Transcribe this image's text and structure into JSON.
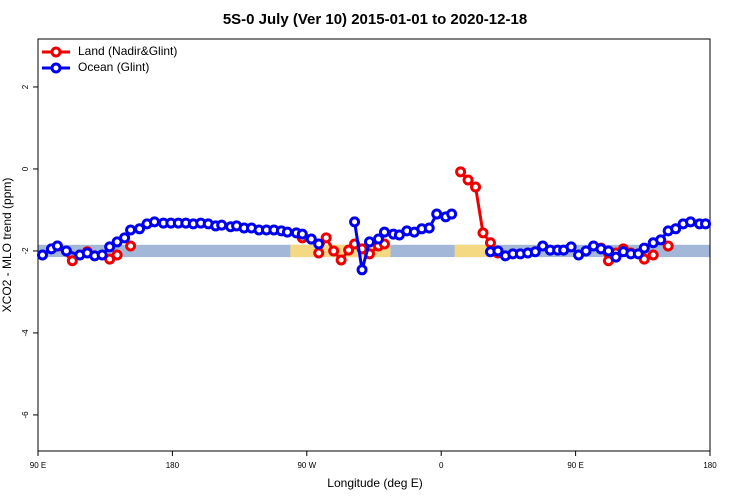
{
  "chart_data": {
    "type": "line",
    "title": "5S-0 July (Ver 10)   2015-01-01 to 2020-12-18",
    "x_label": "Longitude (deg E)",
    "y_label": "XCO2 - MLO trend (ppm)",
    "xlim": [
      90,
      540
    ],
    "ylim": [
      -6.88,
      3.17
    ],
    "xticks": [
      {
        "value": 90,
        "label": "90 E"
      },
      180,
      {
        "value": 270,
        "label": "90 W"
      },
      {
        "value": 360,
        "label": "0"
      },
      {
        "value": 450,
        "label": "90 E"
      },
      180
    ],
    "yticks": [
      2,
      0,
      -2,
      -4,
      -6
    ],
    "legend": "top-left",
    "band": {
      "ylim": [
        -2.15,
        -1.85
      ],
      "color": "#a3b8d8"
    },
    "highlights": [
      {
        "xlim": [
          259,
          326
        ],
        "color": "#f5d982"
      },
      {
        "xlim": [
          369,
          396
        ],
        "color": "#f5d982"
      }
    ],
    "series": [
      {
        "name": "Land (Nadir&Glint)",
        "color": "#ee0000",
        "x": [
          103,
          113,
          123,
          null,
          138,
          143,
          null,
          152,
          null,
          267,
          null,
          278,
          283,
          288,
          293,
          298,
          302,
          307,
          312,
          318,
          322,
          null,
          373,
          378,
          383,
          388,
          393,
          398,
          null,
          467,
          472,
          477,
          482,
          487,
          null,
          496,
          502,
          null,
          512
        ],
        "values": [
          -1.88,
          -2.24,
          -2.02,
          null,
          -2.2,
          -2.1,
          null,
          -1.88,
          null,
          -1.68,
          null,
          -2.05,
          -1.68,
          -2.0,
          -2.22,
          -1.98,
          -1.83,
          -1.95,
          -2.07,
          -1.88,
          -1.83,
          null,
          -0.07,
          -0.27,
          -0.44,
          -1.56,
          -1.8,
          -2.05,
          null,
          -1.93,
          -2.24,
          -2.05,
          -1.95,
          -2.05,
          null,
          -2.2,
          -2.1,
          null,
          -1.88
        ]
      },
      {
        "name": "Ocean (Glint)",
        "color": "#0000ee",
        "x": [
          93,
          99,
          103,
          109,
          118,
          123,
          128,
          133,
          138,
          143,
          148,
          152,
          158,
          163,
          168,
          174,
          179,
          184,
          189,
          194,
          199,
          204,
          209,
          213,
          219,
          223,
          228,
          233,
          238,
          243,
          248,
          253,
          257,
          263,
          267,
          273,
          278,
          null,
          302,
          307,
          312,
          318,
          322,
          328,
          332,
          337,
          342,
          347,
          352,
          357,
          363,
          367,
          null,
          393,
          398,
          403,
          408,
          413,
          418,
          423,
          428,
          433,
          438,
          442,
          447,
          452,
          457,
          462,
          467,
          472,
          477,
          482,
          487,
          492,
          496,
          502,
          507,
          512,
          517,
          522,
          527,
          533,
          537
        ],
        "values": [
          -2.1,
          -1.95,
          -1.88,
          -2.0,
          -2.1,
          -2.05,
          -2.12,
          -2.1,
          -1.9,
          -1.78,
          -1.68,
          -1.49,
          -1.46,
          -1.34,
          -1.29,
          -1.32,
          -1.32,
          -1.32,
          -1.32,
          -1.34,
          -1.32,
          -1.34,
          -1.39,
          -1.37,
          -1.41,
          -1.39,
          -1.44,
          -1.44,
          -1.49,
          -1.49,
          -1.49,
          -1.51,
          -1.54,
          -1.56,
          -1.59,
          -1.71,
          -1.83,
          null,
          -1.29,
          -2.46,
          -1.78,
          -1.71,
          -1.54,
          -1.59,
          -1.61,
          -1.51,
          -1.54,
          -1.46,
          -1.44,
          -1.1,
          -1.17,
          -1.1,
          null,
          -2.02,
          -2.0,
          -2.12,
          -2.07,
          -2.07,
          -2.05,
          -2.02,
          -1.88,
          -1.98,
          -1.98,
          -1.98,
          -1.9,
          -2.1,
          -2.0,
          -1.88,
          -1.95,
          -2.0,
          -2.15,
          -2.02,
          -2.07,
          -2.07,
          -1.93,
          -1.8,
          -1.73,
          -1.51,
          -1.46,
          -1.34,
          -1.29,
          -1.34,
          -1.34
        ]
      }
    ]
  }
}
